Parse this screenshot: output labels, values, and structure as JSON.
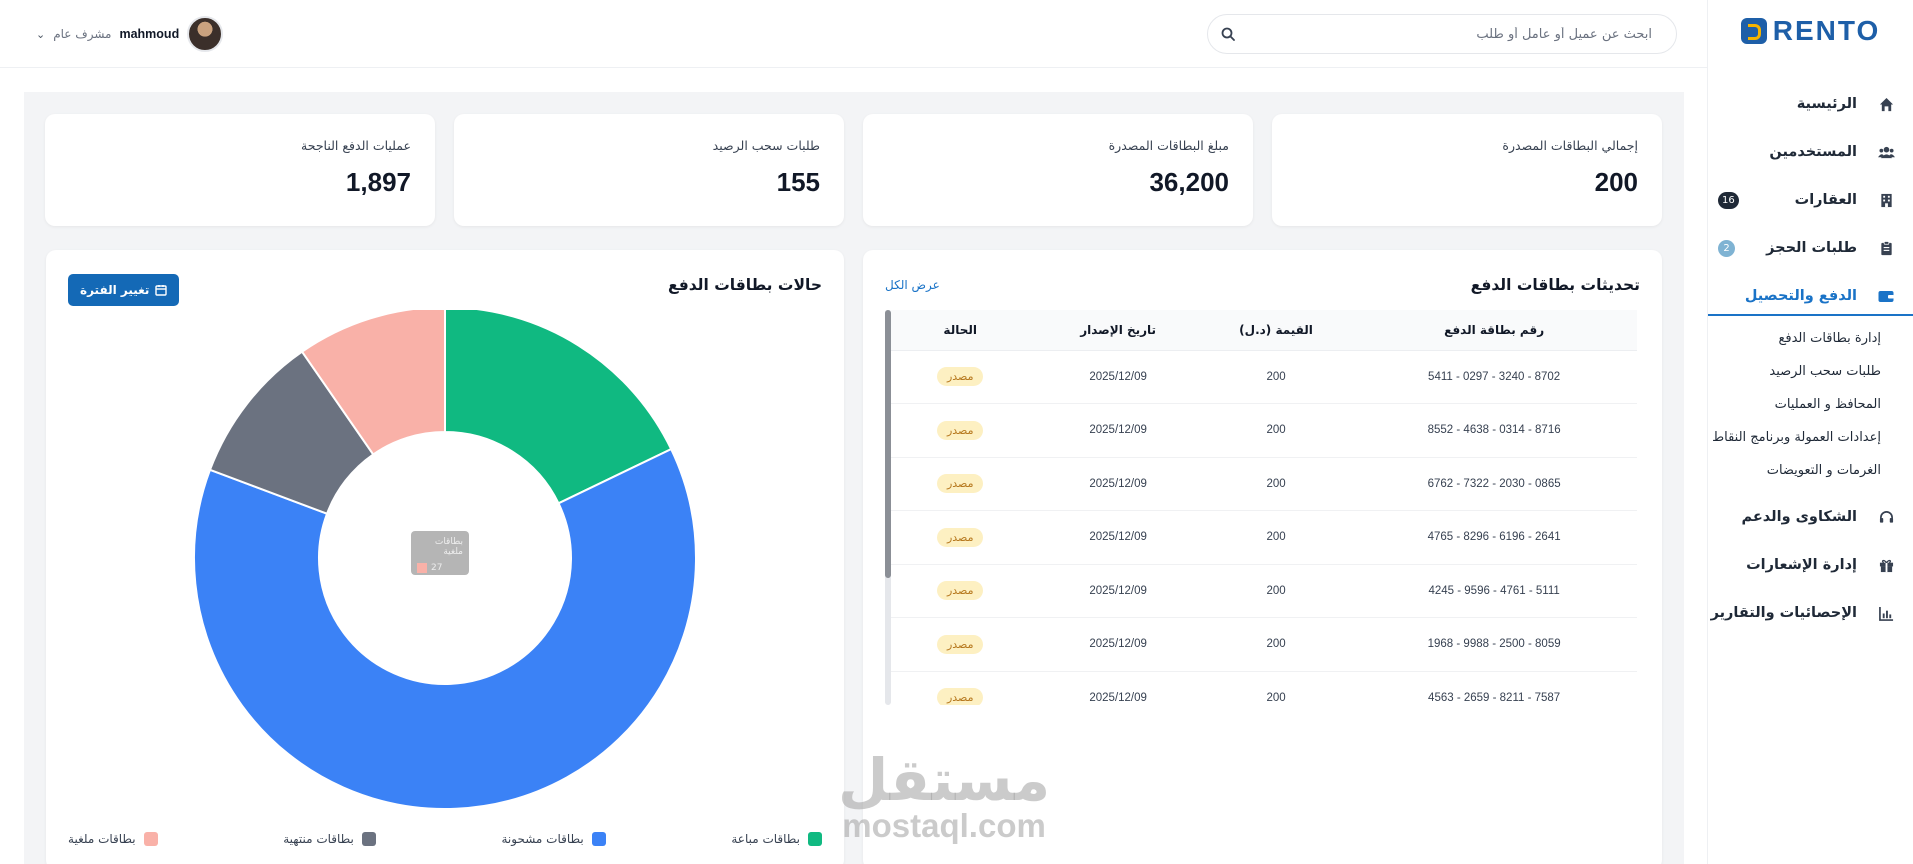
{
  "brand": {
    "name": "RENTO"
  },
  "sidebar": {
    "items": [
      {
        "label": "الرئيسية",
        "icon": "home-icon"
      },
      {
        "label": "المستخدمين",
        "icon": "users-icon"
      },
      {
        "label": "العقارات",
        "icon": "building-icon",
        "badge": "16",
        "badge_color": "#1f2937"
      },
      {
        "label": "طلبات الحجز",
        "icon": "clipboard-icon",
        "badge": "2",
        "badge_color": "#7fb3d3"
      },
      {
        "label": "الدفع والتحصيل",
        "icon": "wallet-icon",
        "active": true
      },
      {
        "label": "الشكاوى والدعم",
        "icon": "headset-icon"
      },
      {
        "label": "إدارة الإشعارات",
        "icon": "gift-icon"
      },
      {
        "label": "الإحصائيات والتقارير",
        "icon": "chart-icon"
      }
    ],
    "payment_subitems": [
      "إدارة بطاقات الدفع",
      "طلبات سحب الرصيد",
      "المحافظ و العمليات",
      "إعدادات العمولة وبرنامج النقاط",
      "الغرمات و التعويضات"
    ]
  },
  "topbar": {
    "search_placeholder": "ابحث عن عميل أو عامل أو طلب",
    "user_name": "mahmoud",
    "user_role": "مشرف عام"
  },
  "stats": [
    {
      "label": "إجمالي البطاقات المصدرة",
      "value": "200"
    },
    {
      "label": "مبلغ البطاقات المصدرة",
      "value": "36,200"
    },
    {
      "label": "طلبات سحب الرصيد",
      "value": "155"
    },
    {
      "label": "عمليات الدفع الناجحة",
      "value": "1,897"
    }
  ],
  "updates": {
    "title": "تحديثات بطاقات الدفع",
    "view_all": "عرض الكل",
    "columns": [
      "رقم بطاقة الدفع",
      "القيمة (د.ل)",
      "تاريخ الإصدار",
      "الحالة"
    ],
    "rows": [
      {
        "card": "5411 - 0297 - 3240 - 8702",
        "amount": "200",
        "date": "2025/12/09",
        "status": "مصدر"
      },
      {
        "card": "8552 - 4638 - 0314 - 8716",
        "amount": "200",
        "date": "2025/12/09",
        "status": "مصدر"
      },
      {
        "card": "6762 - 7322 - 2030 - 0865",
        "amount": "200",
        "date": "2025/12/09",
        "status": "مصدر"
      },
      {
        "card": "4765 - 8296 - 6196 - 2641",
        "amount": "200",
        "date": "2025/12/09",
        "status": "مصدر"
      },
      {
        "card": "4245 - 9596 - 4761 - 5111",
        "amount": "200",
        "date": "2025/12/09",
        "status": "مصدر"
      },
      {
        "card": "1968 - 9988 - 2500 - 8059",
        "amount": "200",
        "date": "2025/12/09",
        "status": "مصدر"
      },
      {
        "card": "4563 - 2659 - 8211 - 7587",
        "amount": "200",
        "date": "2025/12/09",
        "status": "مصدر"
      }
    ]
  },
  "chart_panel": {
    "title": "حالات بطاقات الدفع",
    "period_button": "تغيير الفترة",
    "tooltip": {
      "label": "بطاقات ملغية",
      "value": "27"
    }
  },
  "chart_data": {
    "type": "pie",
    "donut": true,
    "categories": [
      "بطاقات مباعة",
      "بطاقات مشحونة",
      "بطاقات منتهية",
      "بطاقات ملغية"
    ],
    "values": [
      50,
      176,
      27,
      27
    ],
    "colors": [
      "#10b981",
      "#3b82f6",
      "#6b7280",
      "#f9b1a8"
    ],
    "legend": "bottom"
  },
  "watermark": {
    "ar": "مستقل",
    "en": "mostaql.com"
  }
}
